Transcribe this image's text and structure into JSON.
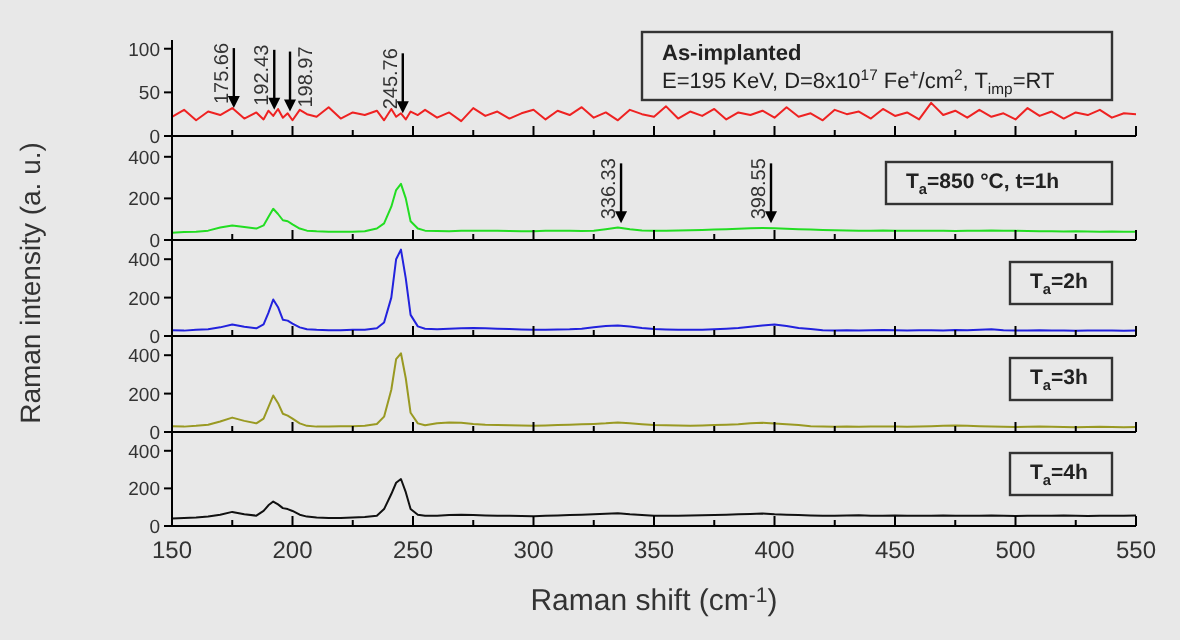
{
  "chart_data": [
    {
      "type": "line",
      "tick_labels": "y",
      "xlim": [
        150,
        550
      ],
      "xticks": [
        150,
        {
          "value": 175,
          "label": null
        },
        200,
        {
          "value": 225,
          "label": null
        },
        250,
        {
          "value": 275,
          "label": null
        },
        300,
        {
          "value": 325,
          "label": null
        },
        350,
        {
          "value": 375,
          "label": null
        },
        400,
        {
          "value": 425,
          "label": null
        },
        450,
        {
          "value": 475,
          "label": null
        },
        500,
        {
          "value": 525,
          "label": null
        },
        550
      ],
      "ylim": [
        0,
        110
      ],
      "yticks": [
        0,
        50,
        100
      ],
      "x": [
        150,
        155,
        160,
        165,
        170,
        175,
        180,
        185,
        188,
        190,
        192,
        194,
        196,
        198,
        200,
        203,
        206,
        210,
        215,
        220,
        225,
        230,
        235,
        238,
        241,
        243,
        245,
        247,
        249,
        252,
        255,
        260,
        265,
        270,
        275,
        280,
        285,
        290,
        295,
        300,
        305,
        310,
        315,
        320,
        325,
        330,
        335,
        340,
        345,
        350,
        355,
        360,
        365,
        370,
        375,
        380,
        385,
        390,
        395,
        400,
        405,
        410,
        415,
        420,
        425,
        430,
        435,
        440,
        445,
        450,
        455,
        460,
        465,
        470,
        475,
        480,
        485,
        490,
        495,
        500,
        505,
        510,
        515,
        520,
        525,
        530,
        535,
        540,
        545,
        550
      ],
      "series": [
        {
          "color": "#ee2222",
          "values": [
            22,
            30,
            18,
            28,
            24,
            32,
            20,
            27,
            19,
            29,
            23,
            31,
            21,
            26,
            18,
            30,
            25,
            22,
            33,
            20,
            27,
            24,
            29,
            18,
            31,
            22,
            26,
            19,
            28,
            24,
            30,
            21,
            27,
            17,
            32,
            23,
            28,
            20,
            26,
            30,
            19,
            29,
            24,
            33,
            21,
            27,
            18,
            30,
            25,
            22,
            34,
            20,
            28,
            23,
            31,
            19,
            27,
            24,
            29,
            21,
            33,
            22,
            26,
            18,
            30,
            25,
            28,
            20,
            31,
            23,
            27,
            19,
            38,
            24,
            29,
            21,
            30,
            22,
            26,
            19,
            32,
            23,
            28,
            20,
            27,
            24,
            30,
            21,
            26,
            25
          ]
        }
      ],
      "annotations": [
        {
          "text": "175.66",
          "x": 175.66,
          "y": 32
        },
        {
          "text": "192.43",
          "x": 192.43,
          "y": 30
        },
        {
          "text": "198.97",
          "x": 198.97,
          "y": 28
        },
        {
          "text": "245.76",
          "x": 245.76,
          "y": 26
        },
        "As-implanted",
        "E=195 KeV, D=8x10$^{17}$ Fe$^{+}$/cm$^{2}$, T$_{imp}$=RT"
      ]
    },
    {
      "type": "line",
      "tick_labels": "y",
      "xlim": [
        150,
        550
      ],
      "xticks": [
        150,
        {
          "value": 175,
          "label": null
        },
        200,
        {
          "value": 225,
          "label": null
        },
        250,
        {
          "value": 275,
          "label": null
        },
        300,
        {
          "value": 325,
          "label": null
        },
        350,
        {
          "value": 375,
          "label": null
        },
        400,
        {
          "value": 425,
          "label": null
        },
        450,
        {
          "value": 475,
          "label": null
        },
        500,
        {
          "value": 525,
          "label": null
        },
        550
      ],
      "ylim": [
        0,
        500
      ],
      "yticks": [
        0,
        200,
        400
      ],
      "x": [
        150,
        155,
        160,
        165,
        170,
        175,
        180,
        185,
        188,
        190,
        192,
        194,
        196,
        198,
        200,
        203,
        206,
        210,
        215,
        220,
        225,
        230,
        235,
        238,
        241,
        243,
        245,
        247,
        249,
        252,
        255,
        260,
        265,
        270,
        275,
        280,
        285,
        290,
        295,
        300,
        305,
        310,
        315,
        320,
        325,
        330,
        335,
        340,
        345,
        350,
        355,
        360,
        365,
        370,
        375,
        380,
        385,
        390,
        395,
        400,
        405,
        410,
        415,
        420,
        425,
        430,
        435,
        440,
        445,
        450,
        455,
        460,
        465,
        470,
        475,
        480,
        485,
        490,
        495,
        500,
        505,
        510,
        515,
        520,
        525,
        530,
        535,
        540,
        545,
        550
      ],
      "series": [
        {
          "color": "#22dd22",
          "values": [
            35,
            38,
            40,
            45,
            60,
            70,
            62,
            55,
            70,
            110,
            150,
            125,
            95,
            90,
            75,
            55,
            45,
            42,
            40,
            40,
            40,
            42,
            55,
            80,
            160,
            240,
            270,
            200,
            90,
            55,
            45,
            43,
            42,
            44,
            45,
            45,
            44,
            43,
            42,
            42,
            44,
            45,
            44,
            43,
            45,
            52,
            60,
            52,
            46,
            44,
            45,
            46,
            47,
            48,
            50,
            52,
            54,
            56,
            58,
            56,
            54,
            52,
            50,
            48,
            47,
            46,
            45,
            45,
            46,
            45,
            44,
            44,
            45,
            44,
            43,
            44,
            45,
            46,
            45,
            44,
            43,
            42,
            42,
            41,
            42,
            41,
            40,
            41,
            40,
            40
          ]
        }
      ],
      "annotations": [
        {
          "text": "336.33",
          "x": 336.33,
          "y": 80
        },
        {
          "text": "398.55",
          "x": 398.55,
          "y": 80
        },
        "T$_{a}$=850 °C, t=1h"
      ]
    },
    {
      "type": "line",
      "tick_labels": "y",
      "ylabel": "Raman intensity (a. u.)",
      "xlim": [
        150,
        550
      ],
      "xticks": [
        150,
        {
          "value": 175,
          "label": null
        },
        200,
        {
          "value": 225,
          "label": null
        },
        250,
        {
          "value": 275,
          "label": null
        },
        300,
        {
          "value": 325,
          "label": null
        },
        350,
        {
          "value": 375,
          "label": null
        },
        400,
        {
          "value": 425,
          "label": null
        },
        450,
        {
          "value": 475,
          "label": null
        },
        500,
        {
          "value": 525,
          "label": null
        },
        550
      ],
      "ylim": [
        0,
        500
      ],
      "yticks": [
        0,
        200,
        400
      ],
      "x": [
        150,
        155,
        160,
        165,
        170,
        175,
        180,
        185,
        188,
        190,
        192,
        194,
        196,
        198,
        200,
        203,
        206,
        210,
        215,
        220,
        225,
        230,
        235,
        238,
        241,
        243,
        245,
        247,
        249,
        252,
        255,
        260,
        265,
        270,
        275,
        280,
        285,
        290,
        295,
        300,
        305,
        310,
        315,
        320,
        325,
        330,
        335,
        340,
        345,
        350,
        355,
        360,
        365,
        370,
        375,
        380,
        385,
        390,
        395,
        400,
        405,
        410,
        415,
        420,
        425,
        430,
        435,
        440,
        445,
        450,
        455,
        460,
        465,
        470,
        475,
        480,
        485,
        490,
        495,
        500,
        505,
        510,
        515,
        520,
        525,
        530,
        535,
        540,
        545,
        550
      ],
      "series": [
        {
          "color": "#2222dd",
          "values": [
            30,
            28,
            32,
            35,
            45,
            60,
            48,
            40,
            60,
            120,
            190,
            150,
            85,
            80,
            65,
            45,
            35,
            32,
            30,
            30,
            32,
            33,
            40,
            70,
            200,
            400,
            450,
            300,
            110,
            50,
            38,
            35,
            38,
            40,
            42,
            40,
            38,
            36,
            34,
            32,
            33,
            34,
            35,
            38,
            45,
            52,
            55,
            50,
            42,
            36,
            34,
            33,
            32,
            33,
            35,
            38,
            42,
            48,
            55,
            60,
            52,
            42,
            36,
            30,
            28,
            30,
            29,
            30,
            31,
            30,
            29,
            30,
            30,
            29,
            31,
            30,
            32,
            35,
            30,
            29,
            28,
            30,
            29,
            28,
            27,
            28,
            29,
            28,
            27,
            28
          ]
        }
      ],
      "annotations": [
        "T$_{a}$=2h"
      ]
    },
    {
      "type": "line",
      "tick_labels": "y",
      "xlim": [
        150,
        550
      ],
      "xticks": [
        150,
        {
          "value": 175,
          "label": null
        },
        200,
        {
          "value": 225,
          "label": null
        },
        250,
        {
          "value": 275,
          "label": null
        },
        300,
        {
          "value": 325,
          "label": null
        },
        350,
        {
          "value": 375,
          "label": null
        },
        400,
        {
          "value": 425,
          "label": null
        },
        450,
        {
          "value": 475,
          "label": null
        },
        500,
        {
          "value": 525,
          "label": null
        },
        550
      ],
      "ylim": [
        0,
        500
      ],
      "yticks": [
        0,
        200,
        400
      ],
      "x": [
        150,
        155,
        160,
        165,
        170,
        175,
        180,
        185,
        188,
        190,
        192,
        194,
        196,
        198,
        200,
        203,
        206,
        210,
        215,
        220,
        225,
        230,
        235,
        238,
        241,
        243,
        245,
        247,
        249,
        252,
        255,
        260,
        265,
        270,
        275,
        280,
        285,
        290,
        295,
        300,
        305,
        310,
        315,
        320,
        325,
        330,
        335,
        340,
        345,
        350,
        355,
        360,
        365,
        370,
        375,
        380,
        385,
        390,
        395,
        400,
        405,
        410,
        415,
        420,
        425,
        430,
        435,
        440,
        445,
        450,
        455,
        460,
        465,
        470,
        475,
        480,
        485,
        490,
        495,
        500,
        505,
        510,
        515,
        520,
        525,
        530,
        535,
        540,
        545,
        550
      ],
      "series": [
        {
          "color": "#999922",
          "values": [
            30,
            28,
            32,
            38,
            55,
            75,
            58,
            45,
            70,
            130,
            190,
            150,
            95,
            85,
            70,
            45,
            32,
            28,
            28,
            30,
            30,
            32,
            42,
            80,
            220,
            380,
            410,
            280,
            100,
            45,
            35,
            45,
            50,
            48,
            42,
            38,
            36,
            35,
            34,
            33,
            34,
            36,
            38,
            40,
            42,
            45,
            50,
            45,
            40,
            36,
            35,
            34,
            33,
            34,
            36,
            38,
            40,
            45,
            48,
            44,
            40,
            36,
            30,
            28,
            27,
            28,
            27,
            28,
            29,
            28,
            27,
            28,
            30,
            32,
            34,
            32,
            30,
            28,
            27,
            26,
            27,
            28,
            27,
            26,
            25,
            26,
            27,
            26,
            25,
            26
          ]
        }
      ],
      "annotations": [
        "T$_{a}$=3h"
      ]
    },
    {
      "type": "line",
      "xlabel": "Raman shift (cm$^{-1}$)",
      "xlim": [
        150,
        550
      ],
      "xticks": [
        150,
        {
          "value": 175,
          "label": null
        },
        200,
        {
          "value": 225,
          "label": null
        },
        250,
        {
          "value": 275,
          "label": null
        },
        300,
        {
          "value": 325,
          "label": null
        },
        350,
        {
          "value": 375,
          "label": null
        },
        400,
        {
          "value": 425,
          "label": null
        },
        450,
        {
          "value": 475,
          "label": null
        },
        500,
        {
          "value": 525,
          "label": null
        },
        550
      ],
      "ylim": [
        0,
        500
      ],
      "yticks": [
        0,
        200,
        400
      ],
      "x": [
        150,
        155,
        160,
        165,
        170,
        175,
        180,
        185,
        188,
        190,
        192,
        194,
        196,
        198,
        200,
        203,
        206,
        210,
        215,
        220,
        225,
        230,
        235,
        238,
        241,
        243,
        245,
        247,
        249,
        252,
        255,
        260,
        265,
        270,
        275,
        280,
        285,
        290,
        295,
        300,
        305,
        310,
        315,
        320,
        325,
        330,
        335,
        340,
        345,
        350,
        355,
        360,
        365,
        370,
        375,
        380,
        385,
        390,
        395,
        400,
        405,
        410,
        415,
        420,
        425,
        430,
        435,
        440,
        445,
        450,
        455,
        460,
        465,
        470,
        475,
        480,
        485,
        490,
        495,
        500,
        505,
        510,
        515,
        520,
        525,
        530,
        535,
        540,
        545,
        550
      ],
      "series": [
        {
          "color": "#111111",
          "values": [
            40,
            42,
            45,
            50,
            60,
            75,
            62,
            55,
            80,
            110,
            130,
            115,
            95,
            90,
            80,
            60,
            50,
            45,
            42,
            42,
            45,
            48,
            55,
            90,
            170,
            230,
            250,
            180,
            90,
            60,
            55,
            55,
            58,
            60,
            58,
            56,
            55,
            54,
            53,
            52,
            54,
            56,
            58,
            60,
            62,
            65,
            68,
            62,
            58,
            55,
            54,
            55,
            56,
            57,
            58,
            60,
            62,
            64,
            66,
            62,
            60,
            58,
            56,
            55,
            54,
            56,
            57,
            55,
            54,
            56,
            55,
            54,
            55,
            56,
            55,
            54,
            55,
            56,
            54,
            53,
            55,
            54,
            55,
            56,
            54,
            53,
            55,
            54,
            55,
            56
          ]
        }
      ],
      "annotations": [
        "T$_{a}$=4h"
      ]
    }
  ]
}
